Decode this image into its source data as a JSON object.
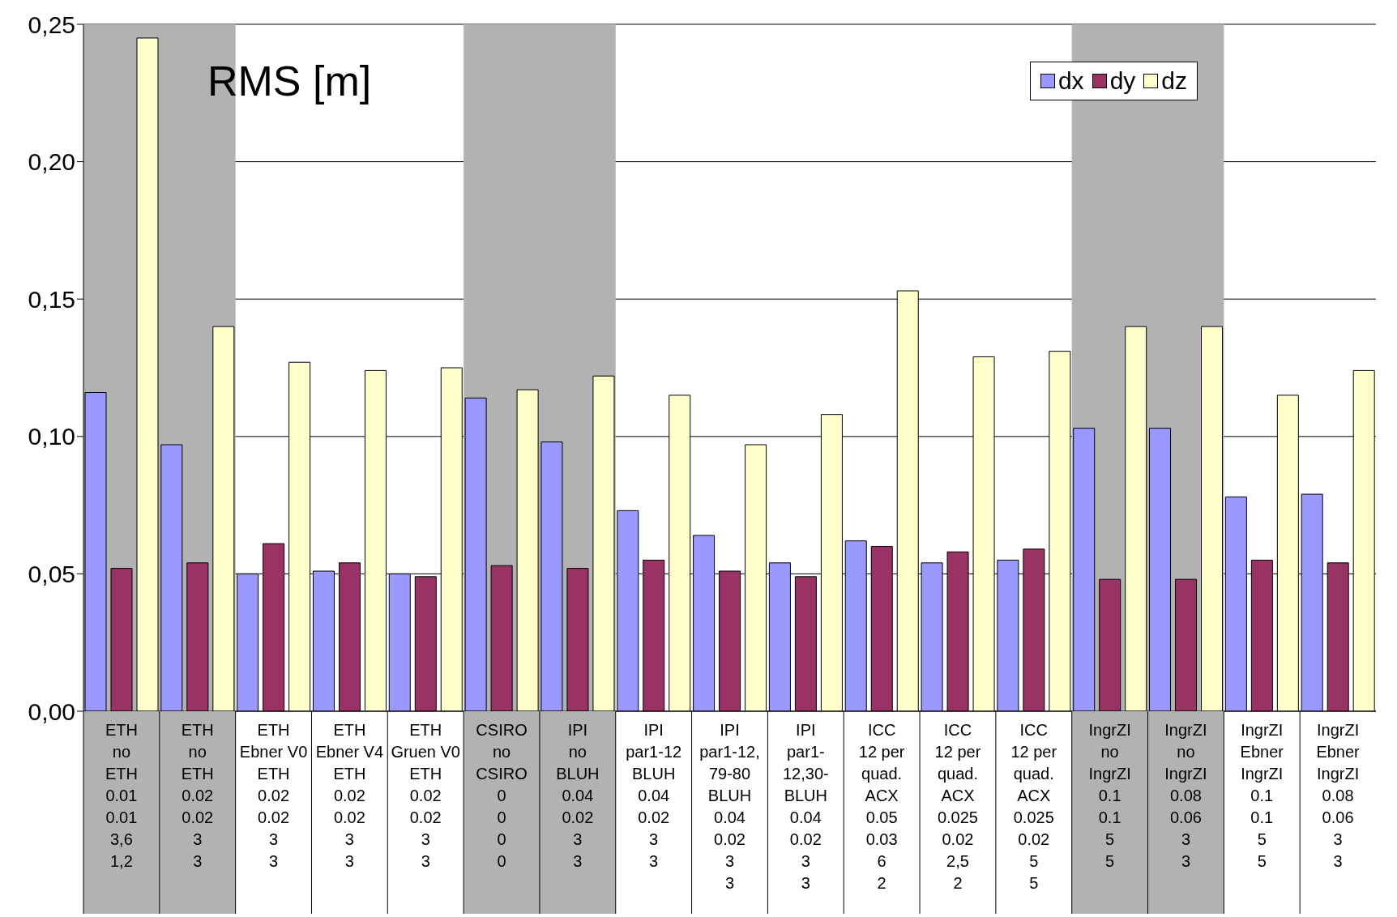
{
  "chart_data": {
    "type": "bar",
    "title": "RMS [m]",
    "categories": [
      "ETH\nno\nETH\n0.01\n0.01\n3,6\n1,2",
      "ETH\nno\nETH\n0.02\n0.02\n3\n3",
      "ETH\nEbner V0\nETH\n0.02\n0.02\n3\n3",
      "ETH\nEbner V4\nETH\n0.02\n0.02\n3\n3",
      "ETH\nGruen V0\nETH\n0.02\n0.02\n3\n3",
      "CSIRO\nno\nCSIRO\n0\n0\n0\n0",
      "IPI\nno\nBLUH\n0.04\n0.02\n3\n3",
      "IPI\npar1-12\nBLUH\n0.04\n0.02\n3\n3",
      "IPI\npar1-12, 79-80\nBLUH\n0.04\n0.02\n3\n3",
      "IPI\npar1-12,30-\nBLUH\n0.04\n0.02\n3\n3",
      "ICC\n12 per quad.\nACX\n0.05\n0.03\n6\n2",
      "ICC\n12 per quad.\nACX\n0.025\n0.02\n2,5\n2",
      "ICC\n12 per quad.\nACX\n0.025\n0.02\n5\n5",
      "IngrZI\nno\nIngrZI\n0.1\n0.1\n5\n5",
      "IngrZI\nno\nIngrZI\n0.08\n0.06\n3\n3",
      "IngrZI\nEbner\nIngrZI\n0.1\n0.1\n5\n5",
      "IngrZI\nEbner\nIngrZI\n0.08\n0.06\n3\n3"
    ],
    "series": [
      {
        "name": "dx",
        "color": "#9999ff",
        "values": [
          0.116,
          0.097,
          0.05,
          0.051,
          0.05,
          0.114,
          0.098,
          0.073,
          0.064,
          0.054,
          0.062,
          0.054,
          0.055,
          0.103,
          0.103,
          0.078,
          0.079
        ]
      },
      {
        "name": "dy",
        "color": "#993366",
        "values": [
          0.052,
          0.054,
          0.061,
          0.054,
          0.049,
          0.053,
          0.052,
          0.055,
          0.051,
          0.049,
          0.06,
          0.058,
          0.059,
          0.048,
          0.048,
          0.055,
          0.054
        ]
      },
      {
        "name": "dz",
        "color": "#ffffcc",
        "values": [
          0.245,
          0.14,
          0.127,
          0.124,
          0.125,
          0.117,
          0.122,
          0.115,
          0.097,
          0.108,
          0.153,
          0.129,
          0.131,
          0.14,
          0.14,
          0.115,
          0.124
        ]
      }
    ],
    "ylim": [
      0,
      0.25
    ],
    "yticks": [
      {
        "value": 0,
        "label": "0,00"
      },
      {
        "value": 0.05,
        "label": "0,05"
      },
      {
        "value": 0.1,
        "label": "0,10"
      },
      {
        "value": 0.15,
        "label": "0,15"
      },
      {
        "value": 0.2,
        "label": "0,20"
      },
      {
        "value": 0.25,
        "label": "0,25"
      }
    ],
    "bands": [
      {
        "axis": "x",
        "from": "ETH\nno\nETH\n0.01\n0.01\n3,6\n1,2",
        "to": "ETH\nno\nETH\n0.02\n0.02\n3\n3",
        "color": "#b2b2b2"
      },
      {
        "axis": "x",
        "from": "CSIRO\nno\nCSIRO\n0\n0\n0\n0",
        "to": "IPI\nno\nBLUH\n0.04\n0.02\n3\n3",
        "color": "#b2b2b2"
      },
      {
        "axis": "x",
        "from": "IngrZI\nno\nIngrZI\n0.1\n0.1\n5\n5",
        "to": "IngrZI\nno\nIngrZI\n0.08\n0.06\n3\n3",
        "color": "#b2b2b2"
      }
    ],
    "grid": "y",
    "legend": "top right"
  }
}
